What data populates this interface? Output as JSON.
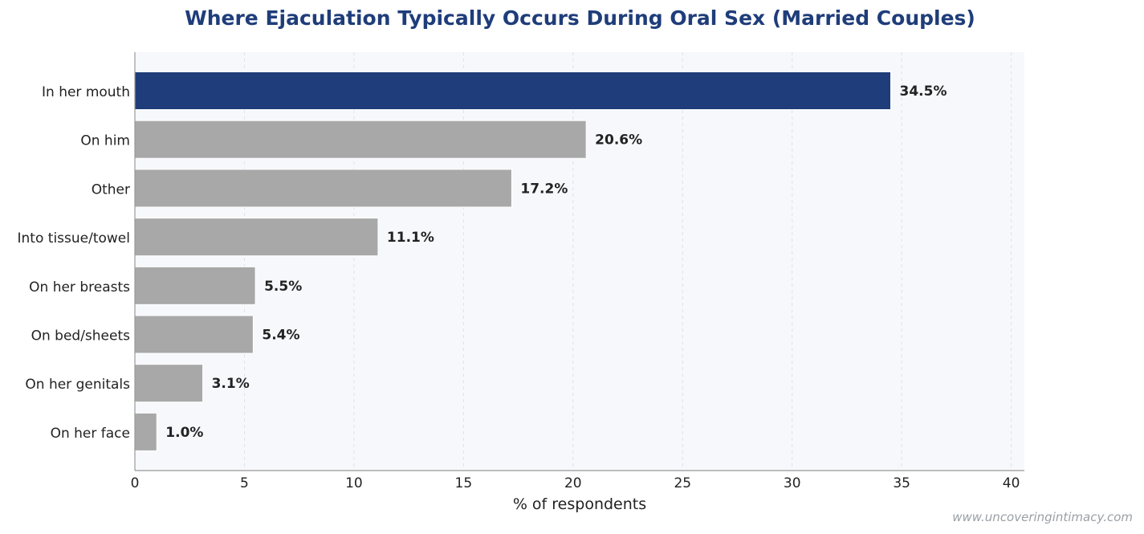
{
  "chart_data": {
    "type": "bar",
    "orientation": "horizontal",
    "title": "Where Ejaculation Typically Occurs During Oral Sex (Married Couples)",
    "xlabel": "% of respondents",
    "ylabel": "",
    "xlim": [
      0,
      40.6
    ],
    "xticks": [
      0,
      5,
      10,
      15,
      20,
      25,
      30,
      35,
      40
    ],
    "grid": "vertical dashed",
    "categories": [
      "In her mouth",
      "On him",
      "Other",
      "Into tissue/towel",
      "On her breasts",
      "On bed/sheets",
      "On her genitals",
      "On her face"
    ],
    "values": [
      34.5,
      20.6,
      17.2,
      11.1,
      5.5,
      5.4,
      3.1,
      1.0
    ],
    "data_labels": [
      "34.5%",
      "20.6%",
      "17.2%",
      "11.1%",
      "5.5%",
      "5.4%",
      "3.1%",
      "1.0%"
    ],
    "highlight_color": "#1f3d7a",
    "bar_color": "#a8a8a8"
  },
  "watermark": "www.uncoveringintimacy.com"
}
